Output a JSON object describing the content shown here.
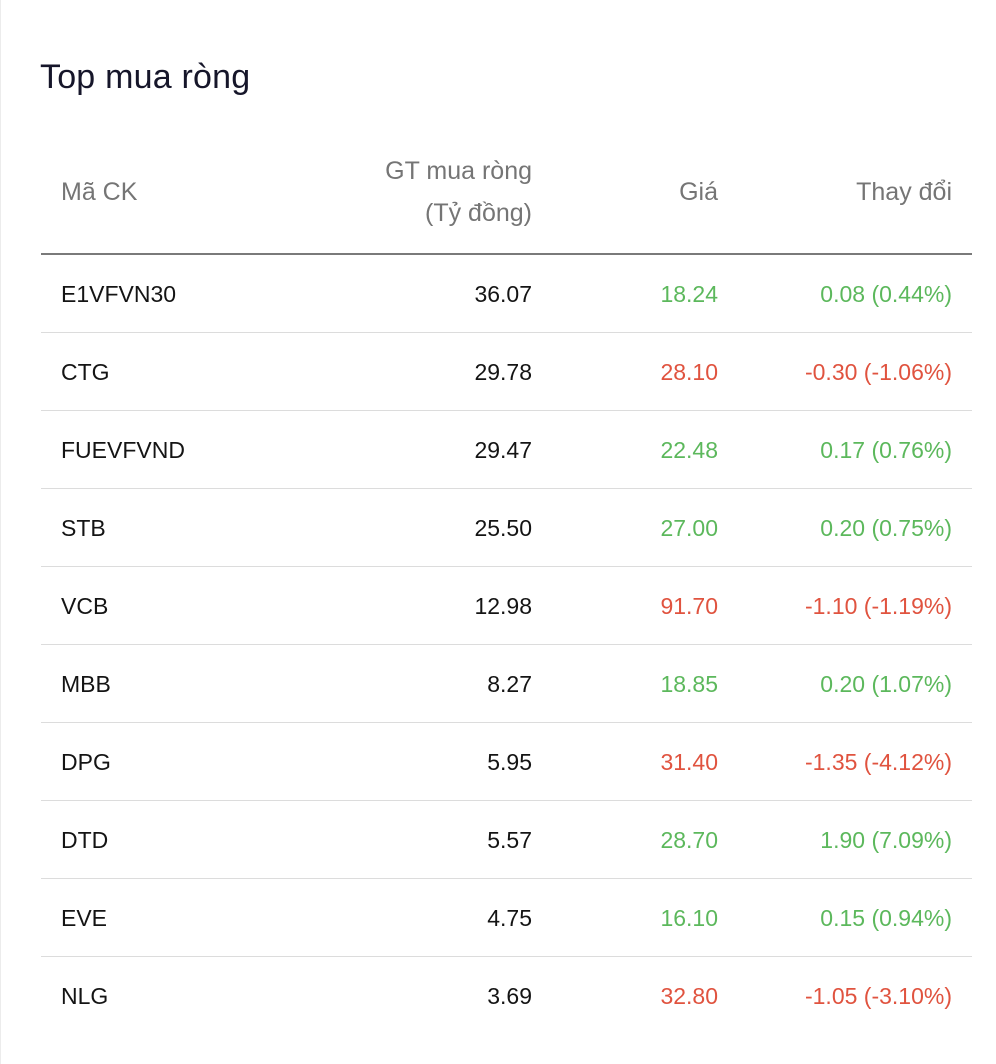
{
  "title": "Top mua ròng",
  "headers": {
    "symbol": "Mã CK",
    "net_value_line1": "GT mua ròng",
    "net_value_line2": "(Tỷ đồng)",
    "price": "Giá",
    "change": "Thay đổi"
  },
  "colors": {
    "up": "#5cb85c",
    "down": "#e0533f"
  },
  "rows": [
    {
      "symbol": "E1VFVN30",
      "net_value": "36.07",
      "price": "18.24",
      "change": "0.08 (0.44%)",
      "trend": "up"
    },
    {
      "symbol": "CTG",
      "net_value": "29.78",
      "price": "28.10",
      "change": "-0.30 (-1.06%)",
      "trend": "down"
    },
    {
      "symbol": "FUEVFVND",
      "net_value": "29.47",
      "price": "22.48",
      "change": "0.17 (0.76%)",
      "trend": "up"
    },
    {
      "symbol": "STB",
      "net_value": "25.50",
      "price": "27.00",
      "change": "0.20 (0.75%)",
      "trend": "up"
    },
    {
      "symbol": "VCB",
      "net_value": "12.98",
      "price": "91.70",
      "change": "-1.10 (-1.19%)",
      "trend": "down"
    },
    {
      "symbol": "MBB",
      "net_value": "8.27",
      "price": "18.85",
      "change": "0.20 (1.07%)",
      "trend": "up"
    },
    {
      "symbol": "DPG",
      "net_value": "5.95",
      "price": "31.40",
      "change": "-1.35 (-4.12%)",
      "trend": "down"
    },
    {
      "symbol": "DTD",
      "net_value": "5.57",
      "price": "28.70",
      "change": "1.90 (7.09%)",
      "trend": "up"
    },
    {
      "symbol": "EVE",
      "net_value": "4.75",
      "price": "16.10",
      "change": "0.15 (0.94%)",
      "trend": "up"
    },
    {
      "symbol": "NLG",
      "net_value": "3.69",
      "price": "32.80",
      "change": "-1.05 (-3.10%)",
      "trend": "down"
    }
  ]
}
